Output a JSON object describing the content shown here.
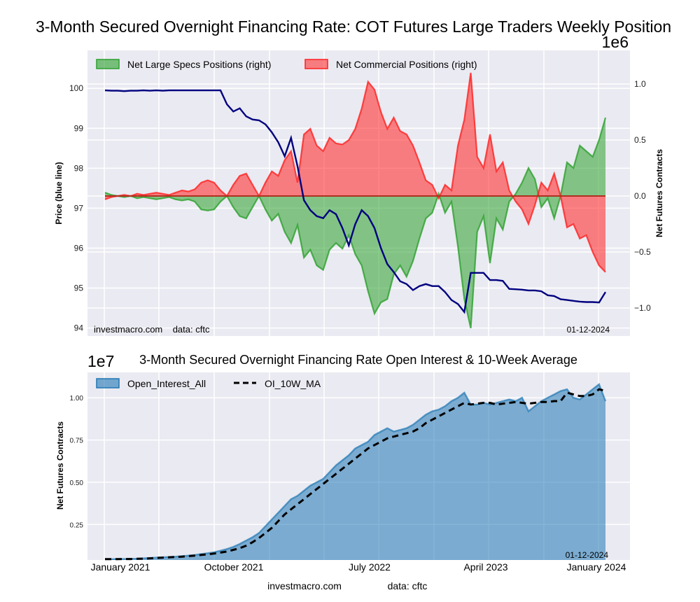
{
  "figure": {
    "footer_site": "investmacro.com",
    "footer_source": "data: cftc"
  },
  "chart_data": [
    {
      "type": "area",
      "title": "3-Month Secured Overnight Financing Rate: COT Futures Large Traders Weekly Position",
      "ylabel_left": "Price (blue line)",
      "ylabel_right": "Net Futures Contracts",
      "right_axis_offset_label": "1e6",
      "ylim_left": [
        93.8,
        100.95
      ],
      "ylim_right": [
        -1.25,
        1.3
      ],
      "yticks_left": [
        "94",
        "95",
        "96",
        "97",
        "98",
        "99",
        "100"
      ],
      "yticks_left_values": [
        94,
        95,
        96,
        97,
        98,
        99,
        100
      ],
      "yticks_right": [
        "−1.0",
        "−0.5",
        "0.0",
        "0.5",
        "1.0"
      ],
      "yticks_right_values": [
        -1.0,
        -0.5,
        0.0,
        0.5,
        1.0
      ],
      "grid": true,
      "legend_position": "top-left",
      "watermark_left": "investmacro.com    data: cftc",
      "date_label": "01-12-2024",
      "x_start": "2021-01-05",
      "x_end": "2024-01-09",
      "x_step_weeks": 2,
      "series": [
        {
          "name": "Net Large Specs Positions (right)",
          "kind": "fill",
          "color": "#2ca02c",
          "axis": "right",
          "values": [
            0.03,
            0.01,
            0.0,
            -0.01,
            0.0,
            -0.02,
            -0.01,
            -0.02,
            -0.03,
            -0.02,
            -0.01,
            -0.03,
            -0.04,
            -0.03,
            -0.05,
            -0.12,
            -0.13,
            -0.12,
            -0.05,
            0.0,
            -0.1,
            -0.18,
            -0.2,
            -0.1,
            0.0,
            -0.12,
            -0.22,
            -0.16,
            -0.32,
            -0.42,
            -0.26,
            -0.55,
            -0.48,
            -0.62,
            -0.66,
            -0.48,
            -0.42,
            -0.47,
            -0.35,
            -0.52,
            -0.62,
            -0.85,
            -1.05,
            -0.95,
            -0.92,
            -0.7,
            -0.62,
            -0.72,
            -0.58,
            -0.38,
            -0.2,
            -0.15,
            0.02,
            -0.15,
            -0.05,
            -0.45,
            -0.92,
            -1.18,
            -0.32,
            -0.18,
            -0.6,
            -0.2,
            -0.3,
            -0.05,
            0.02,
            0.12,
            0.25,
            0.15,
            -0.1,
            -0.02,
            -0.2,
            0.0,
            0.3,
            0.25,
            0.45,
            0.4,
            0.35,
            0.5,
            0.7
          ]
        },
        {
          "name": "Net Commercial Positions (right)",
          "kind": "fill",
          "color": "#ff2020",
          "axis": "right",
          "values": [
            -0.03,
            -0.01,
            0.0,
            0.01,
            0.0,
            0.02,
            0.01,
            0.02,
            0.03,
            0.02,
            0.01,
            0.03,
            0.05,
            0.04,
            0.06,
            0.12,
            0.14,
            0.12,
            0.05,
            0.0,
            0.1,
            0.18,
            0.2,
            0.1,
            0.0,
            0.12,
            0.22,
            0.18,
            0.32,
            0.4,
            0.12,
            0.55,
            0.6,
            0.45,
            0.4,
            0.52,
            0.47,
            0.46,
            0.5,
            0.6,
            0.78,
            1.02,
            0.95,
            0.75,
            0.6,
            0.7,
            0.58,
            0.55,
            0.45,
            0.3,
            0.14,
            0.1,
            -0.02,
            0.1,
            0.05,
            0.45,
            0.68,
            1.1,
            0.35,
            0.25,
            0.55,
            0.22,
            0.3,
            0.05,
            -0.05,
            -0.12,
            -0.25,
            -0.08,
            0.12,
            0.05,
            0.2,
            0.0,
            -0.28,
            -0.25,
            -0.38,
            -0.35,
            -0.5,
            -0.62,
            -0.68
          ]
        },
        {
          "name": "Price",
          "kind": "line",
          "color": "#00007f",
          "axis": "left",
          "values": [
            99.95,
            99.94,
            99.94,
            99.93,
            99.94,
            99.94,
            99.95,
            99.94,
            99.95,
            99.94,
            99.95,
            99.95,
            99.95,
            99.95,
            99.95,
            99.95,
            99.95,
            99.95,
            99.95,
            99.6,
            99.42,
            99.5,
            99.3,
            99.22,
            99.2,
            99.1,
            98.9,
            98.65,
            98.3,
            98.76,
            98.05,
            97.2,
            96.95,
            96.8,
            96.75,
            96.95,
            96.85,
            96.5,
            96.07,
            96.6,
            96.95,
            96.8,
            96.5,
            96.0,
            95.6,
            95.4,
            95.17,
            95.1,
            94.95,
            95.05,
            95.1,
            95.05,
            95.05,
            94.9,
            94.7,
            94.6,
            94.4,
            95.38,
            95.38,
            95.38,
            95.2,
            95.2,
            95.18,
            94.98,
            94.97,
            94.96,
            94.94,
            94.94,
            94.92,
            94.82,
            94.8,
            94.72,
            94.7,
            94.68,
            94.66,
            94.65,
            94.65,
            94.64,
            94.9
          ]
        }
      ]
    },
    {
      "type": "area",
      "title": "3-Month Secured Overnight Financing Rate Open Interest & 10-Week Average",
      "xlabel": "",
      "ylabel": "Net Futures Contracts",
      "axis_offset_label": "1e7",
      "ylim": [
        0.04,
        1.15
      ],
      "yticks": [
        "0.25",
        "0.50",
        "0.75",
        "1.00"
      ],
      "yticks_values": [
        0.25,
        0.5,
        0.75,
        1.0
      ],
      "xticks": [
        "January 2021",
        "October 2021",
        "July 2022",
        "April 2023",
        "January 2024"
      ],
      "grid": true,
      "legend_position": "top-left",
      "date_label": "01-12-2024",
      "x_start": "2021-01-05",
      "x_end": "2024-01-09",
      "x_step_weeks": 2,
      "series": [
        {
          "name": "Open_Interest_All",
          "kind": "fill",
          "color": "#1f77b4",
          "values": [
            0.045,
            0.045,
            0.046,
            0.046,
            0.047,
            0.048,
            0.05,
            0.052,
            0.054,
            0.056,
            0.058,
            0.06,
            0.063,
            0.066,
            0.07,
            0.075,
            0.08,
            0.086,
            0.095,
            0.105,
            0.118,
            0.135,
            0.155,
            0.175,
            0.2,
            0.24,
            0.28,
            0.32,
            0.36,
            0.4,
            0.42,
            0.45,
            0.48,
            0.5,
            0.52,
            0.56,
            0.6,
            0.63,
            0.66,
            0.7,
            0.72,
            0.74,
            0.78,
            0.8,
            0.82,
            0.8,
            0.81,
            0.82,
            0.84,
            0.87,
            0.9,
            0.92,
            0.93,
            0.95,
            0.98,
            1.0,
            1.03,
            0.96,
            0.96,
            0.97,
            0.96,
            0.97,
            0.98,
            0.99,
            0.98,
            1.0,
            0.92,
            0.95,
            0.98,
            1.0,
            1.02,
            1.04,
            1.05,
            1.0,
            0.99,
            1.02,
            1.05,
            1.08,
            0.98
          ]
        },
        {
          "name": "OI_10W_MA",
          "kind": "dashed-line",
          "color": "#000000",
          "values": [
            0.045,
            0.045,
            0.045,
            0.046,
            0.046,
            0.047,
            0.048,
            0.05,
            0.052,
            0.054,
            0.056,
            0.058,
            0.06,
            0.063,
            0.066,
            0.07,
            0.074,
            0.078,
            0.084,
            0.09,
            0.1,
            0.11,
            0.125,
            0.145,
            0.17,
            0.2,
            0.23,
            0.27,
            0.31,
            0.34,
            0.37,
            0.4,
            0.43,
            0.46,
            0.49,
            0.52,
            0.55,
            0.58,
            0.61,
            0.64,
            0.67,
            0.7,
            0.72,
            0.74,
            0.76,
            0.77,
            0.78,
            0.79,
            0.8,
            0.82,
            0.85,
            0.87,
            0.89,
            0.91,
            0.93,
            0.95,
            0.97,
            0.96,
            0.965,
            0.97,
            0.97,
            0.96,
            0.965,
            0.97,
            0.975,
            0.97,
            0.965,
            0.97,
            0.975,
            0.975,
            0.98,
            0.98,
            1.03,
            1.02,
            1.01,
            1.01,
            1.02,
            1.05,
            1.04
          ]
        }
      ]
    }
  ]
}
